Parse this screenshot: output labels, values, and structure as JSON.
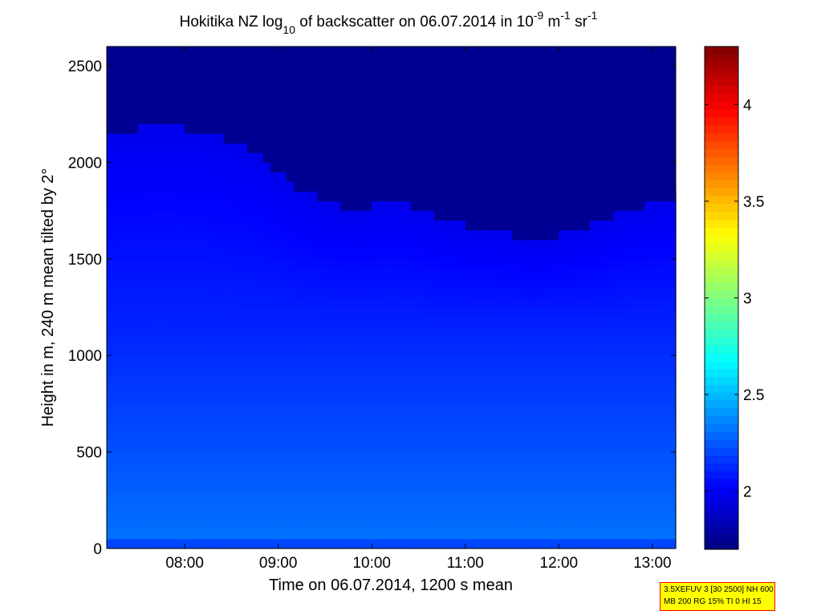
{
  "chart_data": [
    {
      "type": "heatmap",
      "title": {
        "prefix": "Hokitika NZ log",
        "prefix_sub": "10",
        "middle": " of backscatter on 06.07.2014 in 10",
        "sup1": "-9",
        "mid2": " m",
        "sup2": "-1",
        "mid3": " sr",
        "sup3": "-1"
      },
      "xlabel": "Time on 06.07.2014, 1200 s mean",
      "ylabel": "Height in m, 240 m mean tilted by 2°",
      "xlim": [
        "07:10",
        "13:15"
      ],
      "ylim": [
        0,
        2600
      ],
      "x_ticks": [
        "08:00",
        "09:00",
        "10:00",
        "11:00",
        "12:00",
        "13:00"
      ],
      "y_ticks": [
        0,
        500,
        1000,
        1500,
        2000,
        2500
      ],
      "colormap": "jet",
      "clim": [
        1.7,
        4.3
      ],
      "colorbar_ticks": [
        2,
        2.5,
        3,
        3.5,
        4
      ],
      "grid": false,
      "z_profile_heights": [
        0,
        50,
        150,
        250,
        350,
        450,
        550,
        650,
        750,
        850,
        950,
        1050,
        1150,
        1250,
        1350,
        1450,
        1550,
        1650,
        1750,
        1850,
        1950,
        2050,
        2150,
        2250,
        2350,
        2450,
        2550
      ],
      "time_columns": [
        "07:15",
        "07:45",
        "08:15",
        "08:45",
        "09:15",
        "09:45",
        "10:15",
        "10:45",
        "11:15",
        "11:45",
        "12:15",
        "12:45",
        "13:10"
      ],
      "boundary_layer_top_m": [
        2150,
        2200,
        2150,
        2050,
        1850,
        1750,
        1800,
        1700,
        1650,
        1600,
        1650,
        1750,
        1800
      ],
      "surface_value": 2.2,
      "near_surface_value": 2.32,
      "lower_layer_value": 2.25,
      "mid_layer_value": 2.12,
      "upper_layer_value": 1.98,
      "free_troposphere_value": 1.75
    }
  ],
  "info_box": {
    "line1": "3.5XEFUV 3 [30 2500] NH 600",
    "line2": "MB 200 RG 15% TI 0 HI 15"
  }
}
